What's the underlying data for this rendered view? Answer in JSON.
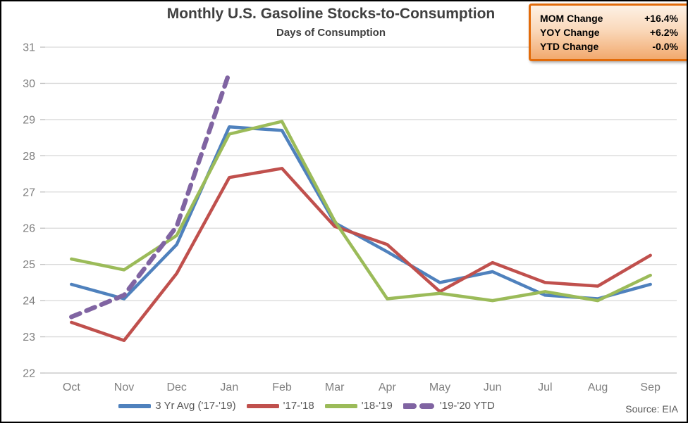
{
  "chart_data": {
    "type": "line",
    "title": "Monthly U.S. Gasoline Stocks-to-Consumption",
    "subtitle": "Days of Consumption",
    "categories": [
      "Oct",
      "Nov",
      "Dec",
      "Jan",
      "Feb",
      "Mar",
      "Apr",
      "May",
      "Jun",
      "Jul",
      "Aug",
      "Sep"
    ],
    "ylabel": "Days of Consumption",
    "ylim": [
      22,
      31
    ],
    "ytick_step": 1,
    "grid": true,
    "legend_position": "bottom",
    "series": [
      {
        "name": "3 Yr Avg ('17-'19)",
        "color": "#4F81BD",
        "dashed": false,
        "values": [
          24.45,
          24.05,
          25.55,
          28.8,
          28.7,
          26.15,
          25.35,
          24.5,
          24.8,
          24.15,
          24.05,
          24.45
        ]
      },
      {
        "name": "'17-'18",
        "color": "#C0504D",
        "dashed": false,
        "values": [
          23.4,
          22.9,
          24.75,
          27.4,
          27.65,
          26.05,
          25.55,
          24.25,
          25.05,
          24.5,
          24.4,
          25.25
        ]
      },
      {
        "name": "'18-'19",
        "color": "#9BBB59",
        "dashed": false,
        "values": [
          25.15,
          24.85,
          25.8,
          28.6,
          28.95,
          26.2,
          24.05,
          24.2,
          24.0,
          24.25,
          24.0,
          24.7
        ]
      },
      {
        "name": "'19-'20 YTD",
        "color": "#8064A2",
        "dashed": true,
        "values": [
          23.55,
          24.15,
          26.05,
          30.3,
          null,
          null,
          null,
          null,
          null,
          null,
          null,
          null
        ]
      }
    ],
    "source": "Source: EIA"
  },
  "stats_box": {
    "rows": [
      {
        "label": "MOM Change",
        "value": "+16.4%"
      },
      {
        "label": "YOY Change",
        "value": "+6.2%"
      },
      {
        "label": "YTD Change",
        "value": "-0.0%"
      }
    ]
  },
  "colors": {
    "gridline": "#D9D9D9",
    "axis_line": "#C0C0C0",
    "axis_text": "#7F7F7F",
    "title_text": "#404040",
    "stats_border": "#E26B0A"
  }
}
